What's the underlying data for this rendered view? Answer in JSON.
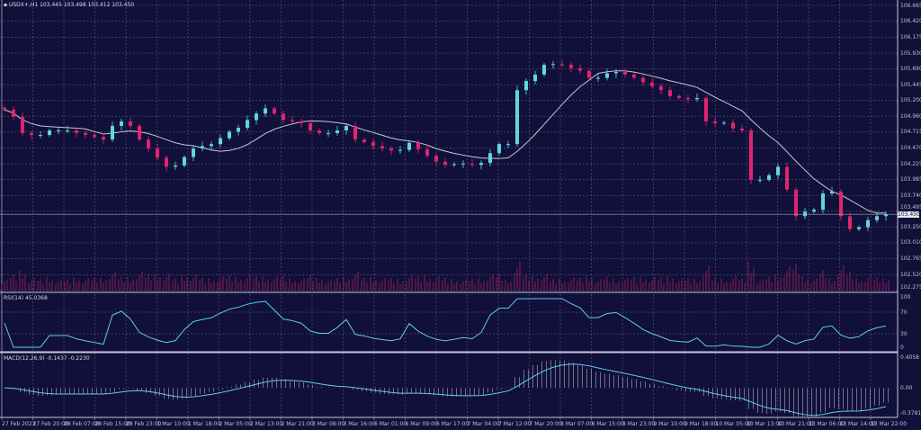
{
  "symbol_header": {
    "symbol": "USDX+,H1",
    "open": "103.445",
    "high": "103.498",
    "low": "103.412",
    "close": "103.450"
  },
  "current_price": "103.450",
  "colors": {
    "background": "#10103a",
    "bull": "#5ed8dc",
    "bear": "#e0246e",
    "grid": "#6a6a8a",
    "ma": "#c8c8d0",
    "indicator": "#5ecfe0",
    "volume": "#b0205a"
  },
  "price_axis": [
    "106.665",
    "106.420",
    "106.175",
    "105.930",
    "105.690",
    "105.445",
    "105.200",
    "104.960",
    "104.715",
    "104.470",
    "104.225",
    "103.985",
    "103.740",
    "103.495",
    "103.250",
    "103.010",
    "102.765",
    "102.520",
    "102.275"
  ],
  "rsi": {
    "label": "RSI(14) 45.0368",
    "axis": [
      "100",
      "70",
      "30",
      "0"
    ]
  },
  "macd": {
    "label": "MACD(12,26,9) -0.1437 -0.2230",
    "axis": [
      "0.4058",
      "0.00",
      "-0.3781"
    ]
  },
  "time_axis": [
    "27 Feb 2023",
    "27 Feb 20:00",
    "28 Feb 07:00",
    "28 Feb 15:00",
    "28 Feb 23:00",
    "1 Mar 10:00",
    "1 Mar 18:00",
    "2 Mar 05:00",
    "2 Mar 13:00",
    "2 Mar 21:00",
    "3 Mar 08:00",
    "3 Mar 16:00",
    "6 Mar 01:00",
    "6 Mar 09:00",
    "6 Mar 17:00",
    "7 Mar 04:00",
    "7 Mar 12:00",
    "7 Mar 20:00",
    "8 Mar 07:00",
    "8 Mar 15:00",
    "8 Mar 23:00",
    "9 Mar 10:00",
    "9 Mar 18:00",
    "10 Mar 05:00",
    "10 Mar 13:00",
    "10 Mar 21:00",
    "13 Mar 06:00",
    "13 Mar 14:00",
    "13 Mar 22:00"
  ],
  "chart_data": {
    "type": "candlestick",
    "ylim": [
      102.275,
      106.665
    ],
    "closes": [
      105.06,
      104.95,
      104.7,
      104.67,
      104.67,
      104.74,
      104.74,
      104.74,
      104.7,
      104.67,
      104.64,
      104.6,
      104.81,
      104.88,
      104.81,
      104.6,
      104.46,
      104.32,
      104.18,
      104.2,
      104.33,
      104.46,
      104.5,
      104.53,
      104.62,
      104.72,
      104.78,
      104.9,
      105.0,
      105.08,
      105.0,
      104.9,
      104.88,
      104.85,
      104.74,
      104.7,
      104.7,
      104.74,
      104.81,
      104.6,
      104.56,
      104.5,
      104.46,
      104.43,
      104.44,
      104.55,
      104.45,
      104.35,
      104.26,
      104.21,
      104.22,
      104.23,
      104.21,
      104.24,
      104.39,
      104.53,
      104.53,
      105.36,
      105.5,
      105.6,
      105.75,
      105.76,
      105.75,
      105.7,
      105.66,
      105.55,
      105.55,
      105.62,
      105.64,
      105.6,
      105.55,
      105.48,
      105.42,
      105.36,
      105.27,
      105.24,
      105.22,
      105.24,
      104.88,
      104.85,
      104.86,
      104.77,
      104.74,
      103.98,
      103.98,
      104.05,
      104.18,
      103.83,
      103.42,
      103.49,
      103.52,
      103.77,
      103.8,
      103.42,
      103.22,
      103.25,
      103.36,
      103.42,
      103.45
    ]
  }
}
